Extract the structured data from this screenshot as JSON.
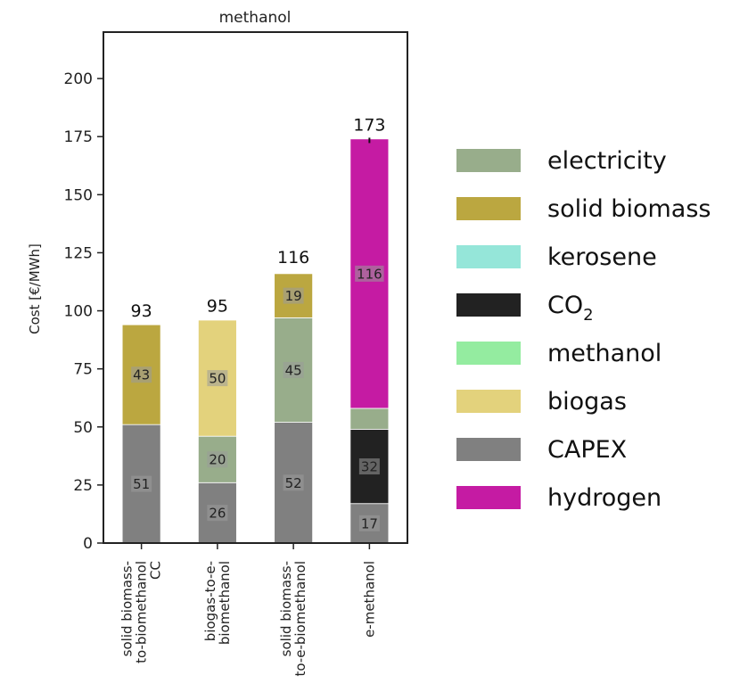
{
  "chart_data": {
    "type": "bar",
    "stacked": true,
    "title": "methanol",
    "xlabel": "",
    "ylabel": "Cost [€/MWh]",
    "ylim": [
      0,
      220
    ],
    "yticks": [
      0,
      25,
      50,
      75,
      100,
      125,
      150,
      175,
      200
    ],
    "grid": false,
    "legend_position": "right",
    "categories": [
      [
        "solid biomass-",
        "to-biomethanol",
        "CC"
      ],
      [
        "biogas-to-e-",
        "biomethanol"
      ],
      [
        "solid biomass-",
        "to-e-biomethanol"
      ],
      [
        "e-methanol"
      ]
    ],
    "totals": [
      93,
      95,
      116,
      173
    ],
    "series": [
      {
        "name": "CAPEX",
        "color": "#808080",
        "values": [
          51,
          26,
          52,
          17
        ],
        "labels": [
          "51",
          "26",
          "52",
          "17"
        ]
      },
      {
        "name": "CO2",
        "color": "#222222",
        "values": [
          0,
          0,
          0,
          32
        ],
        "labels": [
          "",
          "",
          "",
          "32"
        ]
      },
      {
        "name": "electricity",
        "color": "#98ad8b",
        "values": [
          0,
          20,
          45,
          9
        ],
        "labels": [
          "",
          "20",
          "45",
          ""
        ]
      },
      {
        "name": "biogas",
        "color": "#e3d27c",
        "values": [
          0,
          50,
          0,
          0
        ],
        "labels": [
          "",
          "50",
          "",
          ""
        ]
      },
      {
        "name": "solid biomass",
        "color": "#bba740",
        "values": [
          43,
          0,
          19,
          0
        ],
        "labels": [
          "43",
          "",
          "19",
          ""
        ]
      },
      {
        "name": "hydrogen",
        "color": "#c51ba3",
        "values": [
          0,
          0,
          0,
          116
        ],
        "labels": [
          "",
          "",
          "",
          "116"
        ]
      }
    ],
    "legend": [
      {
        "label": "electricity",
        "color": "#98ad8b"
      },
      {
        "label": "solid biomass",
        "color": "#bba740"
      },
      {
        "label": "kerosene",
        "color": "#95e6d9"
      },
      {
        "label": "CO",
        "sub": "2",
        "color": "#222222"
      },
      {
        "label": "methanol",
        "color": "#94eca0"
      },
      {
        "label": "biogas",
        "color": "#e3d27c"
      },
      {
        "label": "CAPEX",
        "color": "#808080"
      },
      {
        "label": "hydrogen",
        "color": "#c51ba3"
      }
    ]
  }
}
